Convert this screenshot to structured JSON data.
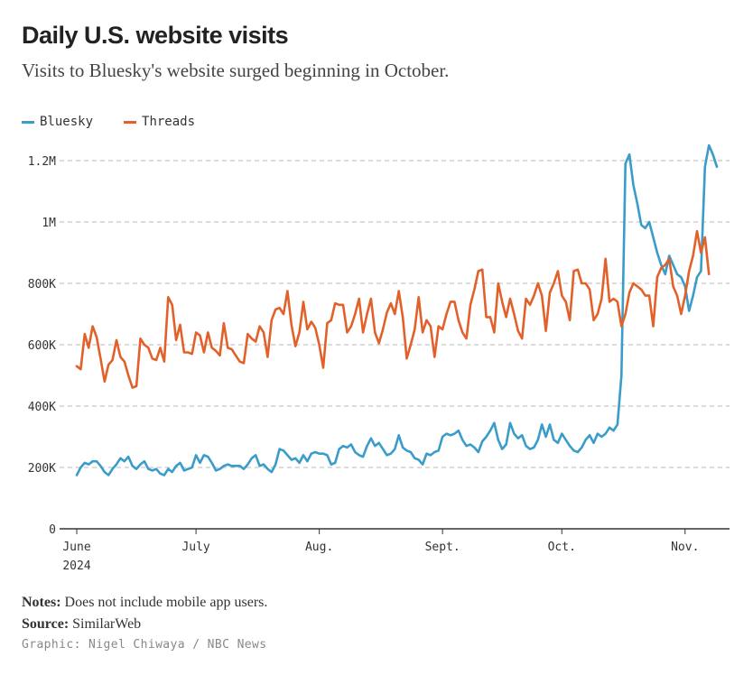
{
  "header": {
    "title": "Daily U.S. website visits",
    "subtitle": "Visits to Bluesky's website surged beginning in October."
  },
  "legend": [
    {
      "label": "Bluesky",
      "color": "#3a9cc9"
    },
    {
      "label": "Threads",
      "color": "#e2612a"
    }
  ],
  "footer": {
    "notes_label": "Notes:",
    "notes_text": "Does not include mobile app users.",
    "source_label": "Source:",
    "source_text": "SimilarWeb",
    "credit": "Graphic: Nigel Chiwaya / NBC News"
  },
  "chart_data": {
    "type": "line",
    "title": "Daily U.S. website visits",
    "subtitle": "Visits to Bluesky's website surged beginning in October.",
    "xlabel": "",
    "ylabel": "",
    "x_start": "2024-06-01",
    "x_end": "2024-11-13",
    "ylim": [
      0,
      1250000
    ],
    "y_ticks": [
      {
        "value": 0,
        "label": "0"
      },
      {
        "value": 200000,
        "label": "200K"
      },
      {
        "value": 400000,
        "label": "400K"
      },
      {
        "value": 600000,
        "label": "600K"
      },
      {
        "value": 800000,
        "label": "800K"
      },
      {
        "value": 1000000,
        "label": "1M"
      },
      {
        "value": 1200000,
        "label": "1.2M"
      }
    ],
    "x_ticks": [
      {
        "day": 0,
        "label": "June",
        "sublabel": "2024"
      },
      {
        "day": 30,
        "label": "July"
      },
      {
        "day": 61,
        "label": "Aug."
      },
      {
        "day": 92,
        "label": "Sept."
      },
      {
        "day": 122,
        "label": "Oct."
      },
      {
        "day": 153,
        "label": "Nov."
      }
    ],
    "grid": true,
    "legend_position": "top-left",
    "series": [
      {
        "name": "Bluesky",
        "color": "#3a9cc9",
        "values": [
          175000,
          200000,
          215000,
          210000,
          220000,
          220000,
          205000,
          185000,
          175000,
          195000,
          210000,
          230000,
          220000,
          235000,
          205000,
          195000,
          210000,
          220000,
          195000,
          190000,
          195000,
          180000,
          175000,
          195000,
          185000,
          205000,
          215000,
          190000,
          195000,
          200000,
          240000,
          215000,
          240000,
          235000,
          215000,
          190000,
          195000,
          205000,
          210000,
          205000,
          205000,
          205000,
          195000,
          210000,
          230000,
          240000,
          205000,
          210000,
          195000,
          185000,
          210000,
          260000,
          255000,
          240000,
          225000,
          230000,
          215000,
          240000,
          220000,
          245000,
          250000,
          245000,
          245000,
          240000,
          210000,
          215000,
          260000,
          270000,
          265000,
          275000,
          250000,
          240000,
          235000,
          270000,
          295000,
          270000,
          280000,
          260000,
          240000,
          245000,
          260000,
          305000,
          265000,
          255000,
          250000,
          230000,
          225000,
          210000,
          245000,
          240000,
          250000,
          255000,
          300000,
          310000,
          305000,
          310000,
          320000,
          290000,
          270000,
          275000,
          265000,
          250000,
          285000,
          300000,
          320000,
          345000,
          290000,
          260000,
          275000,
          345000,
          310000,
          295000,
          305000,
          270000,
          260000,
          265000,
          290000,
          340000,
          300000,
          340000,
          290000,
          280000,
          310000,
          290000,
          270000,
          255000,
          250000,
          265000,
          290000,
          305000,
          280000,
          310000,
          300000,
          310000,
          330000,
          320000,
          340000,
          500000,
          1190000,
          1220000,
          1120000,
          1060000,
          990000,
          980000,
          1000000,
          950000,
          900000,
          860000,
          830000,
          890000,
          860000,
          830000,
          820000,
          790000,
          710000,
          760000,
          820000,
          840000,
          1180000,
          1250000,
          1220000,
          1180000
        ]
      },
      {
        "name": "Threads",
        "color": "#e2612a",
        "values": [
          530000,
          520000,
          635000,
          590000,
          660000,
          625000,
          555000,
          480000,
          535000,
          550000,
          615000,
          560000,
          545000,
          500000,
          460000,
          465000,
          620000,
          600000,
          590000,
          555000,
          550000,
          590000,
          545000,
          755000,
          730000,
          615000,
          665000,
          575000,
          575000,
          570000,
          640000,
          630000,
          575000,
          640000,
          590000,
          580000,
          565000,
          670000,
          590000,
          585000,
          565000,
          545000,
          540000,
          635000,
          620000,
          610000,
          660000,
          640000,
          560000,
          680000,
          715000,
          720000,
          700000,
          775000,
          665000,
          595000,
          640000,
          740000,
          650000,
          675000,
          655000,
          600000,
          525000,
          670000,
          680000,
          735000,
          730000,
          730000,
          640000,
          660000,
          700000,
          750000,
          640000,
          700000,
          750000,
          640000,
          605000,
          650000,
          705000,
          735000,
          700000,
          775000,
          690000,
          555000,
          600000,
          650000,
          755000,
          640000,
          680000,
          660000,
          560000,
          660000,
          650000,
          700000,
          740000,
          740000,
          680000,
          640000,
          620000,
          730000,
          780000,
          840000,
          845000,
          690000,
          690000,
          640000,
          800000,
          740000,
          690000,
          750000,
          700000,
          645000,
          620000,
          750000,
          730000,
          760000,
          800000,
          760000,
          645000,
          770000,
          800000,
          840000,
          760000,
          740000,
          680000,
          840000,
          845000,
          800000,
          800000,
          780000,
          680000,
          700000,
          750000,
          880000,
          740000,
          750000,
          740000,
          660000,
          700000,
          770000,
          800000,
          790000,
          780000,
          760000,
          760000,
          660000,
          820000,
          850000,
          860000,
          880000,
          790000,
          760000,
          700000,
          760000,
          840000,
          890000,
          970000,
          900000,
          950000,
          830000
        ]
      }
    ]
  }
}
